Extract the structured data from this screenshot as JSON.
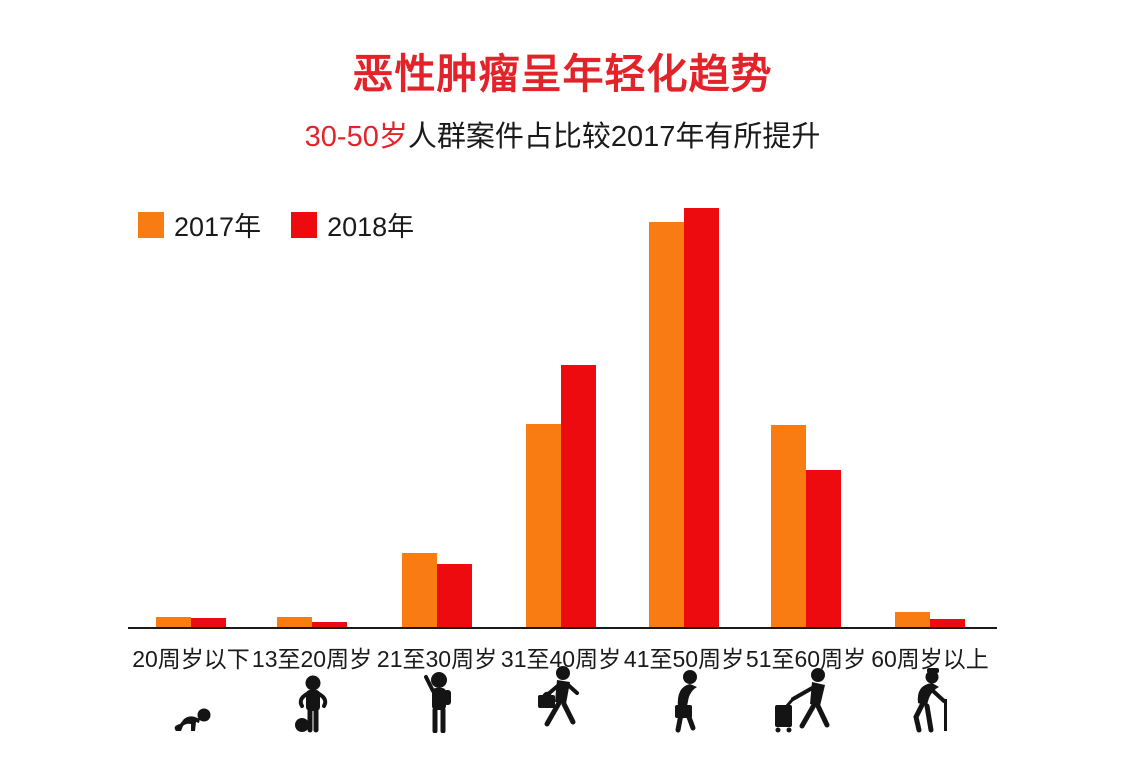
{
  "title": {
    "text": "恶性肿瘤呈年轻化趋势",
    "color": "#e2242a"
  },
  "subtitle": {
    "highlight": "30-50岁",
    "rest": "人群案件占比较2017年有所提升",
    "highlight_color": "#e2242a",
    "text_color": "#1a1a1a"
  },
  "legend": [
    {
      "label": "2017年",
      "color": "#f87c12"
    },
    {
      "label": "2018年",
      "color": "#ee0b0f"
    }
  ],
  "chart_data": {
    "type": "bar",
    "title": "恶性肿瘤呈年轻化趋势",
    "subtitle": "30-50岁人群案件占比较2017年有所提升",
    "categories": [
      "20周岁以下",
      "13至20周岁",
      "21至30周岁",
      "31至40周岁",
      "41至50周岁",
      "51至60周岁",
      "60周岁以上"
    ],
    "series": [
      {
        "name": "2017年",
        "color": "#f87c12",
        "values": [
          1.2,
          1.2,
          8.1,
          22.0,
          43.8,
          21.9,
          1.7
        ]
      },
      {
        "name": "2018年",
        "color": "#ee0b0f",
        "values": [
          1.1,
          0.6,
          6.9,
          28.4,
          45.3,
          17.0,
          1.0
        ]
      }
    ],
    "values_unit": "estimated share of cases, percent (no value axis shown in image)",
    "xlabel": "",
    "ylabel": "",
    "ylim": [
      0,
      47
    ],
    "grid": false,
    "y_axis_shown": false,
    "legend_position": "top-left"
  },
  "icons": [
    "crawling-baby-icon",
    "child-with-ball-icon",
    "student-raising-hand-icon",
    "businessman-with-briefcase-icon",
    "commuter-with-briefcase-icon",
    "traveler-with-luggage-icon",
    "elderly-with-cane-icon"
  ]
}
